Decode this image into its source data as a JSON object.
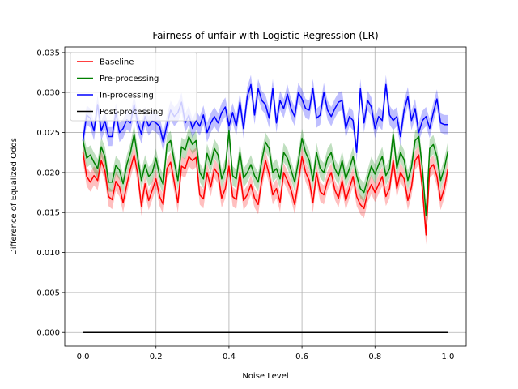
{
  "chart_data": {
    "type": "line",
    "title": "Fairness of unfair with Logistic Regression (LR)",
    "xlabel": "Noise Level",
    "ylabel": "Difference of Equalized Odds",
    "xlim": [
      -0.05,
      1.05
    ],
    "ylim": [
      -0.0017,
      0.0357
    ],
    "x_ticks": [
      0.0,
      0.2,
      0.4,
      0.6,
      0.8,
      1.0
    ],
    "x_tick_labels": [
      "0.0",
      "0.2",
      "0.4",
      "0.6",
      "0.8",
      "1.0"
    ],
    "y_ticks": [
      0.0,
      0.005,
      0.01,
      0.015,
      0.02,
      0.025,
      0.03,
      0.035
    ],
    "y_tick_labels": [
      "0.000",
      "0.005",
      "0.010",
      "0.015",
      "0.020",
      "0.025",
      "0.030",
      "0.035"
    ],
    "grid": true,
    "legend_position": "top-left",
    "x": [
      0.0,
      0.01,
      0.02,
      0.03,
      0.04,
      0.05,
      0.06,
      0.07,
      0.08,
      0.09,
      0.1,
      0.11,
      0.12,
      0.13,
      0.14,
      0.15,
      0.16,
      0.17,
      0.18,
      0.19,
      0.2,
      0.21,
      0.22,
      0.23,
      0.24,
      0.25,
      0.26,
      0.27,
      0.28,
      0.29,
      0.3,
      0.31,
      0.32,
      0.33,
      0.34,
      0.35,
      0.36,
      0.37,
      0.38,
      0.39,
      0.4,
      0.41,
      0.42,
      0.43,
      0.44,
      0.45,
      0.46,
      0.47,
      0.48,
      0.49,
      0.5,
      0.51,
      0.52,
      0.53,
      0.54,
      0.55,
      0.56,
      0.57,
      0.58,
      0.59,
      0.6,
      0.61,
      0.62,
      0.63,
      0.64,
      0.65,
      0.66,
      0.67,
      0.68,
      0.69,
      0.7,
      0.71,
      0.72,
      0.73,
      0.74,
      0.75,
      0.76,
      0.77,
      0.78,
      0.79,
      0.8,
      0.81,
      0.82,
      0.83,
      0.84,
      0.85,
      0.86,
      0.87,
      0.88,
      0.89,
      0.9,
      0.91,
      0.92,
      0.93,
      0.94,
      0.95,
      0.96,
      0.97,
      0.98,
      0.99,
      1.0
    ],
    "series": [
      {
        "name": "Baseline",
        "color": "#ff0000",
        "band_halfwidth": 0.0012,
        "values": [
          0.0225,
          0.0195,
          0.0188,
          0.0196,
          0.019,
          0.0215,
          0.0202,
          0.017,
          0.0166,
          0.0189,
          0.0182,
          0.0162,
          0.0185,
          0.0205,
          0.0222,
          0.0198,
          0.0158,
          0.0186,
          0.0165,
          0.0178,
          0.0192,
          0.017,
          0.016,
          0.0205,
          0.0213,
          0.0188,
          0.0162,
          0.0208,
          0.0205,
          0.022,
          0.0215,
          0.0219,
          0.0172,
          0.0167,
          0.02,
          0.0182,
          0.0205,
          0.0198,
          0.0168,
          0.018,
          0.0208,
          0.017,
          0.0166,
          0.02,
          0.0165,
          0.0172,
          0.0185,
          0.0168,
          0.016,
          0.0191,
          0.0215,
          0.0198,
          0.0172,
          0.018,
          0.0163,
          0.02,
          0.019,
          0.0178,
          0.016,
          0.0188,
          0.022,
          0.02,
          0.019,
          0.0162,
          0.02,
          0.0176,
          0.0172,
          0.019,
          0.02,
          0.0178,
          0.0168,
          0.019,
          0.0165,
          0.018,
          0.0195,
          0.017,
          0.016,
          0.0155,
          0.0175,
          0.0185,
          0.0175,
          0.0185,
          0.0195,
          0.017,
          0.018,
          0.0215,
          0.018,
          0.02,
          0.0192,
          0.0165,
          0.0182,
          0.0215,
          0.0222,
          0.018,
          0.0122,
          0.0205,
          0.021,
          0.0195,
          0.0165,
          0.018,
          0.0205
        ]
      },
      {
        "name": "Pre-processing",
        "color": "#008000",
        "band_halfwidth": 0.0012,
        "values": [
          0.024,
          0.0218,
          0.0222,
          0.0213,
          0.0205,
          0.0232,
          0.022,
          0.0188,
          0.0188,
          0.0209,
          0.0203,
          0.0186,
          0.021,
          0.0225,
          0.0248,
          0.0218,
          0.019,
          0.021,
          0.0195,
          0.02,
          0.0218,
          0.0196,
          0.0185,
          0.0235,
          0.024,
          0.0214,
          0.019,
          0.0232,
          0.0228,
          0.0245,
          0.0235,
          0.024,
          0.02,
          0.0192,
          0.0224,
          0.021,
          0.023,
          0.0222,
          0.0192,
          0.0205,
          0.0252,
          0.0196,
          0.0192,
          0.0225,
          0.0193,
          0.02,
          0.021,
          0.0196,
          0.0188,
          0.0215,
          0.0238,
          0.023,
          0.02,
          0.0205,
          0.0192,
          0.0225,
          0.0218,
          0.0203,
          0.0188,
          0.0214,
          0.0243,
          0.0225,
          0.0215,
          0.019,
          0.0225,
          0.0205,
          0.02,
          0.0218,
          0.0225,
          0.0205,
          0.0196,
          0.0215,
          0.0192,
          0.0205,
          0.022,
          0.0196,
          0.018,
          0.0175,
          0.0192,
          0.0208,
          0.0198,
          0.021,
          0.022,
          0.0196,
          0.0205,
          0.0248,
          0.0205,
          0.0225,
          0.0216,
          0.019,
          0.0207,
          0.024,
          0.0245,
          0.0205,
          0.0146,
          0.023,
          0.0235,
          0.022,
          0.019,
          0.0205,
          0.0227
        ]
      },
      {
        "name": "In-processing",
        "color": "#0000ff",
        "band_halfwidth": 0.0012,
        "values": [
          0.024,
          0.0272,
          0.0268,
          0.0252,
          0.0285,
          0.0252,
          0.0265,
          0.0245,
          0.0245,
          0.0275,
          0.025,
          0.0255,
          0.0266,
          0.0262,
          0.0285,
          0.0262,
          0.0248,
          0.027,
          0.0258,
          0.0265,
          0.0262,
          0.0258,
          0.0238,
          0.026,
          0.0278,
          0.027,
          0.0275,
          0.0288,
          0.0262,
          0.0272,
          0.0255,
          0.0265,
          0.0258,
          0.0272,
          0.025,
          0.0262,
          0.027,
          0.0262,
          0.0275,
          0.0282,
          0.0258,
          0.0275,
          0.0258,
          0.0288,
          0.0255,
          0.0295,
          0.031,
          0.0272,
          0.0305,
          0.029,
          0.0285,
          0.0268,
          0.0305,
          0.0262,
          0.029,
          0.028,
          0.0298,
          0.028,
          0.027,
          0.03,
          0.0292,
          0.028,
          0.0278,
          0.0305,
          0.0268,
          0.0272,
          0.03,
          0.0278,
          0.027,
          0.028,
          0.0288,
          0.029,
          0.0255,
          0.027,
          0.0265,
          0.0225,
          0.0305,
          0.0262,
          0.029,
          0.0282,
          0.0255,
          0.027,
          0.0265,
          0.031,
          0.0272,
          0.0265,
          0.027,
          0.0245,
          0.0278,
          0.0295,
          0.0265,
          0.028,
          0.025,
          0.0265,
          0.027,
          0.0255,
          0.0275,
          0.0292,
          0.0262,
          0.026,
          0.026
        ]
      },
      {
        "name": "Post-processing",
        "color": "#000000",
        "band_halfwidth": 0,
        "values": "constant",
        "constant_value": 0.0
      }
    ]
  }
}
